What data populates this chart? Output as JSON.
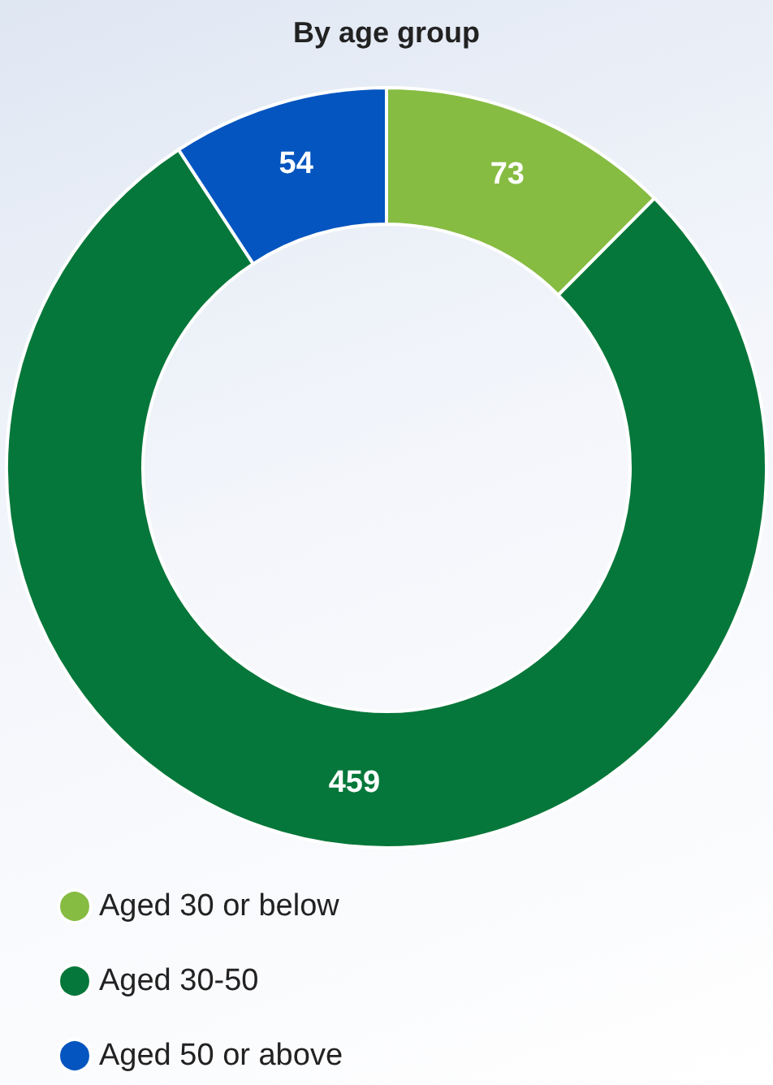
{
  "chart_data": {
    "type": "donut",
    "title": "By age group",
    "categories": [
      "Aged 30 or below",
      "Aged 30-50",
      "Aged 50 or above"
    ],
    "values": [
      73,
      459,
      54
    ],
    "colors": [
      "#86bc42",
      "#06773a",
      "#0455bf"
    ],
    "data_labels": true,
    "legend": "bottom left"
  }
}
